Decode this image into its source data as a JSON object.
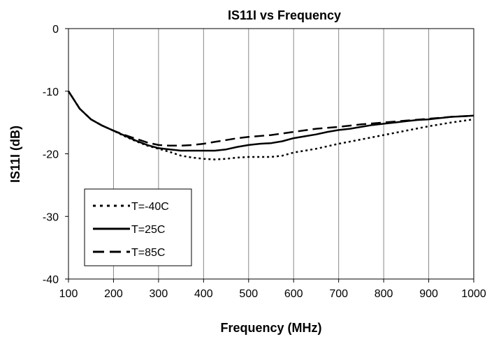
{
  "chart_data": {
    "type": "line",
    "title": "IS11I vs Frequency",
    "xlabel": "Frequency (MHz)",
    "ylabel": "IS11I (dB)",
    "xlim": [
      100,
      1000
    ],
    "ylim": [
      -40,
      0
    ],
    "xticks": [
      100,
      200,
      300,
      400,
      500,
      600,
      700,
      800,
      900,
      1000
    ],
    "yticks": [
      0,
      -10,
      -20,
      -30,
      -40
    ],
    "grid": "vertical",
    "legend_position": "bottom-left",
    "series": [
      {
        "name": "T=-40C",
        "style": "dotted",
        "color": "#000000",
        "x": [
          100,
          125,
          150,
          175,
          200,
          225,
          250,
          275,
          300,
          325,
          350,
          375,
          400,
          425,
          450,
          475,
          500,
          525,
          550,
          575,
          600,
          650,
          700,
          750,
          800,
          850,
          900,
          950,
          1000
        ],
        "y": [
          -10,
          -12.8,
          -14.5,
          -15.5,
          -16.3,
          -17.2,
          -18,
          -18.7,
          -19.2,
          -19.7,
          -20.3,
          -20.6,
          -20.8,
          -20.9,
          -20.8,
          -20.6,
          -20.5,
          -20.5,
          -20.5,
          -20.3,
          -19.8,
          -19.2,
          -18.4,
          -17.7,
          -17,
          -16.3,
          -15.6,
          -15,
          -14.5
        ]
      },
      {
        "name": "T=25C",
        "style": "solid",
        "color": "#000000",
        "x": [
          100,
          125,
          150,
          175,
          200,
          225,
          250,
          275,
          300,
          325,
          350,
          375,
          400,
          425,
          450,
          475,
          500,
          525,
          550,
          575,
          600,
          625,
          650,
          675,
          700,
          725,
          750,
          775,
          800,
          825,
          850,
          875,
          900,
          925,
          950,
          975,
          1000
        ],
        "y": [
          -10,
          -12.8,
          -14.5,
          -15.5,
          -16.3,
          -17.1,
          -17.9,
          -18.6,
          -19.1,
          -19.3,
          -19.5,
          -19.5,
          -19.5,
          -19.5,
          -19.3,
          -18.9,
          -18.6,
          -18.4,
          -18.3,
          -18,
          -17.5,
          -17.2,
          -16.9,
          -16.5,
          -16.2,
          -16,
          -15.7,
          -15.4,
          -15.2,
          -15,
          -14.8,
          -14.6,
          -14.5,
          -14.3,
          -14.1,
          -14,
          -13.9
        ]
      },
      {
        "name": "T=85C",
        "style": "dashed",
        "color": "#000000",
        "x": [
          100,
          125,
          150,
          175,
          200,
          225,
          250,
          275,
          300,
          325,
          350,
          375,
          400,
          425,
          450,
          475,
          500,
          550,
          600,
          650,
          700,
          750,
          800,
          850,
          900,
          950,
          1000
        ],
        "y": [
          -10,
          -12.8,
          -14.5,
          -15.5,
          -16.3,
          -17.0,
          -17.6,
          -18.2,
          -18.6,
          -18.7,
          -18.7,
          -18.6,
          -18.4,
          -18.1,
          -17.8,
          -17.5,
          -17.3,
          -17,
          -16.5,
          -16,
          -15.7,
          -15.3,
          -15,
          -14.7,
          -14.4,
          -14.1,
          -13.9
        ]
      }
    ]
  }
}
